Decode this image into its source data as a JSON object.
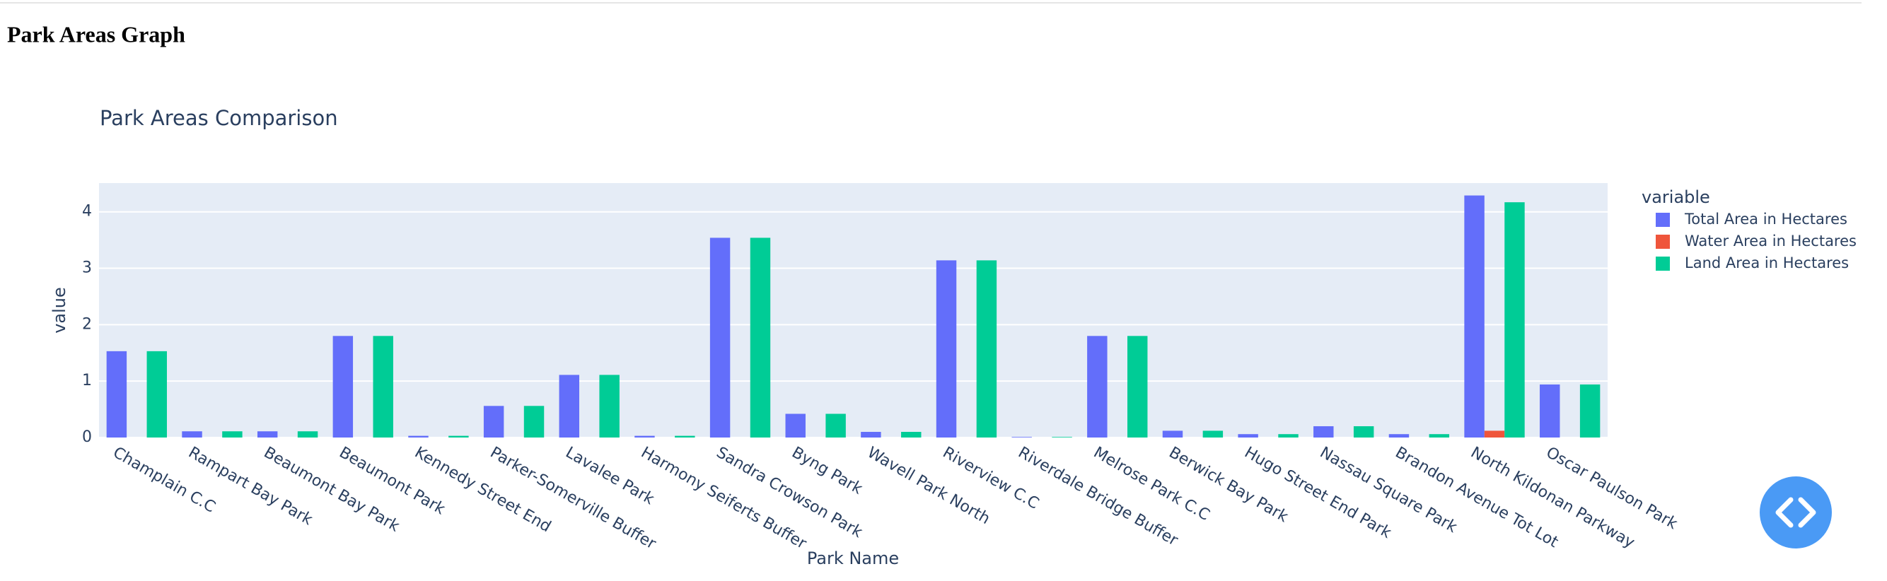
{
  "header": {
    "title": "Park Areas Graph"
  },
  "chart_data": {
    "type": "bar",
    "title": "Park Areas Comparison",
    "x_label": "Park Name",
    "y_label": "value",
    "legend_title": "variable",
    "categories": [
      "Champlain C.C",
      "Rampart Bay Park",
      "Beaumont Bay Park",
      "Beaumont Park",
      "Kennedy Street End",
      "Parker-Somerville Buffer",
      "Lavalee Park",
      "Harmony Seiferts Buffer",
      "Sandra Crowson Park",
      "Byng Park",
      "Wavell Park North",
      "Riverview C.C",
      "Riverdale Bridge Buffer",
      "Melrose Park C.C",
      "Berwick Bay Park",
      "Hugo Street End Park",
      "Nassau Square Park",
      "Brandon Avenue Tot Lot",
      "North Kildonan Parkway",
      "Oscar Paulson Park"
    ],
    "series": [
      {
        "name": "Total Area in Hectares",
        "color": "#636efa",
        "values": [
          1.53,
          0.11,
          0.11,
          1.8,
          0.03,
          0.56,
          1.11,
          0.03,
          3.54,
          0.42,
          0.1,
          3.14,
          0.01,
          1.8,
          0.12,
          0.06,
          0.2,
          0.06,
          4.29,
          0.94
        ]
      },
      {
        "name": "Water Area in Hectares",
        "color": "#ef553b",
        "values": [
          0,
          0,
          0,
          0,
          0,
          0,
          0,
          0,
          0,
          0,
          0,
          0,
          0,
          0,
          0,
          0,
          0,
          0,
          0.12,
          0
        ]
      },
      {
        "name": "Land Area in Hectares",
        "color": "#00cc96",
        "values": [
          1.53,
          0.11,
          0.11,
          1.8,
          0.03,
          0.56,
          1.11,
          0.03,
          3.54,
          0.42,
          0.1,
          3.14,
          0.01,
          1.8,
          0.12,
          0.06,
          0.2,
          0.06,
          4.17,
          0.94
        ]
      }
    ],
    "ylim": [
      0,
      4.51
    ],
    "yticks": [
      0,
      1,
      2,
      3,
      4
    ],
    "grid": true
  }
}
